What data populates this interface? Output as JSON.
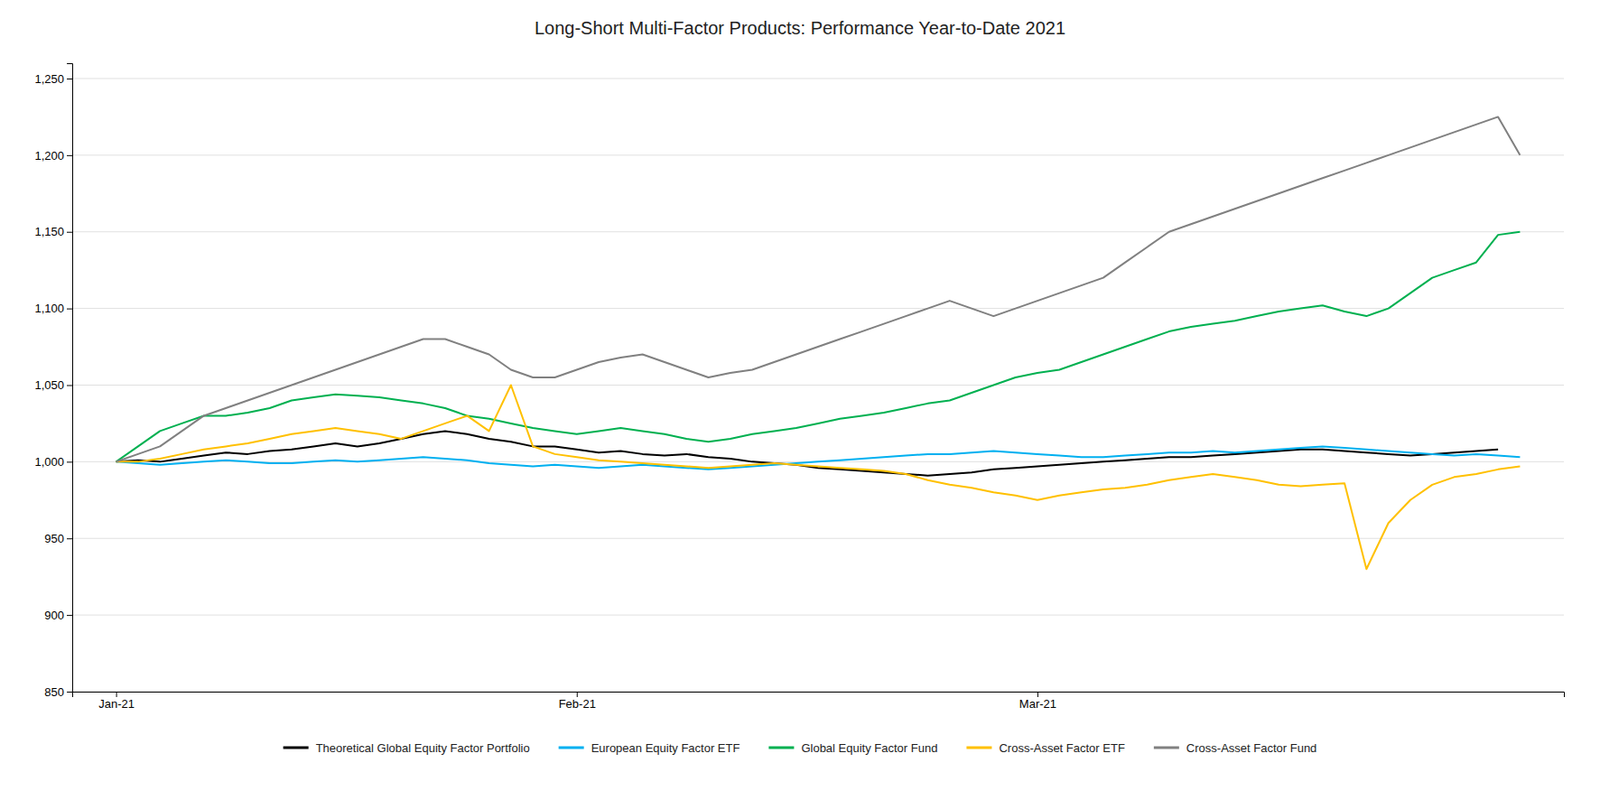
{
  "chart_data": {
    "type": "line",
    "title": "Long-Short Multi-Factor Products: Performance Year-to-Date 2021",
    "categories": [
      "Jan-21",
      null,
      null,
      null,
      null,
      null,
      null,
      null,
      null,
      null,
      null,
      null,
      null,
      null,
      null,
      null,
      null,
      null,
      null,
      null,
      null,
      "Feb-21",
      null,
      null,
      null,
      null,
      null,
      null,
      null,
      null,
      null,
      null,
      null,
      null,
      null,
      null,
      null,
      null,
      null,
      null,
      null,
      null,
      "Mar-21",
      null,
      null,
      null,
      null,
      null,
      null,
      null,
      null,
      null,
      null,
      null,
      null,
      null,
      null,
      null,
      null,
      null,
      null,
      null,
      null,
      null,
      null
    ],
    "ylim": [
      850,
      1260
    ],
    "yticks": [
      850,
      900,
      950,
      {
        "value": 1000,
        "label": "1,000"
      },
      {
        "value": 1050,
        "label": "1,050"
      },
      {
        "value": 1100,
        "label": "1,100"
      },
      {
        "value": 1150,
        "label": "1,150"
      },
      {
        "value": 1200,
        "label": "1,200"
      },
      {
        "value": 1250,
        "label": "1,250"
      }
    ],
    "grid": true,
    "legend": "bottom",
    "series": [
      {
        "name": "Theoretical Global Equity Factor Portfolio",
        "color": "#000000",
        "values": [
          1000,
          1001,
          1000,
          1002,
          1004,
          1006,
          1005,
          1007,
          1008,
          1010,
          1012,
          1010,
          1012,
          1015,
          1018,
          1020,
          1018,
          1015,
          1013,
          1010,
          1010,
          1008,
          1006,
          1007,
          1005,
          1004,
          1005,
          1003,
          1002,
          1000,
          999,
          998,
          996,
          995,
          994,
          993,
          992,
          991,
          992,
          993,
          995,
          996,
          997,
          998,
          999,
          1000,
          1001,
          1002,
          1003,
          1003,
          1004,
          1005,
          1006,
          1007,
          1008,
          1008,
          1007,
          1006,
          1005,
          1004,
          1005,
          1006,
          1007,
          1008,
          null
        ]
      },
      {
        "name": "European Equity Factor ETF",
        "color": "#00B0F0",
        "values": [
          1000,
          999,
          998,
          999,
          1000,
          1001,
          1000,
          999,
          999,
          1000,
          1001,
          1000,
          1001,
          1002,
          1003,
          1002,
          1001,
          999,
          998,
          997,
          998,
          997,
          996,
          997,
          998,
          997,
          996,
          995,
          996,
          997,
          998,
          999,
          1000,
          1001,
          1002,
          1003,
          1004,
          1005,
          1005,
          1006,
          1007,
          1006,
          1005,
          1004,
          1003,
          1003,
          1004,
          1005,
          1006,
          1006,
          1007,
          1006,
          1007,
          1008,
          1009,
          1010,
          1009,
          1008,
          1007,
          1006,
          1005,
          1004,
          1005,
          1004,
          1003
        ]
      },
      {
        "name": "Global Equity Factor Fund",
        "color": "#00B050",
        "values": [
          1000,
          1010,
          1020,
          1025,
          1030,
          1030,
          1032,
          1035,
          1040,
          1042,
          1044,
          1043,
          1042,
          1040,
          1038,
          1035,
          1030,
          1028,
          1025,
          1022,
          1020,
          1018,
          1020,
          1022,
          1020,
          1018,
          1015,
          1013,
          1015,
          1018,
          1020,
          1022,
          1025,
          1028,
          1030,
          1032,
          1035,
          1038,
          1040,
          1045,
          1050,
          1055,
          1058,
          1060,
          1065,
          1070,
          1075,
          1080,
          1085,
          1088,
          1090,
          1092,
          1095,
          1098,
          1100,
          1102,
          1098,
          1095,
          1100,
          1110,
          1120,
          1125,
          1130,
          1148,
          1150
        ]
      },
      {
        "name": "Cross-Asset Factor ETF",
        "color": "#FFC000",
        "values": [
          1000,
          1000,
          1002,
          1005,
          1008,
          1010,
          1012,
          1015,
          1018,
          1020,
          1022,
          1020,
          1018,
          1015,
          1020,
          1025,
          1030,
          1020,
          1050,
          1010,
          1005,
          1003,
          1001,
          1000,
          999,
          998,
          997,
          996,
          997,
          998,
          999,
          998,
          997,
          996,
          995,
          994,
          992,
          988,
          985,
          983,
          980,
          978,
          975,
          978,
          980,
          982,
          983,
          985,
          988,
          990,
          992,
          990,
          988,
          985,
          984,
          985,
          986,
          930,
          960,
          975,
          985,
          990,
          992,
          995,
          997
        ]
      },
      {
        "name": "Cross-Asset Factor Fund",
        "color": "#808080",
        "values": [
          1000,
          1005,
          1010,
          1020,
          1030,
          1035,
          1040,
          1045,
          1050,
          1055,
          1060,
          1065,
          1070,
          1075,
          1080,
          1080,
          1075,
          1070,
          1060,
          1055,
          1055,
          1060,
          1065,
          1068,
          1070,
          1065,
          1060,
          1055,
          1058,
          1060,
          1065,
          1070,
          1075,
          1080,
          1085,
          1090,
          1095,
          1100,
          1105,
          1100,
          1095,
          1100,
          1105,
          1110,
          1115,
          1120,
          1130,
          1140,
          1150,
          1155,
          1160,
          1165,
          1170,
          1175,
          1180,
          1185,
          1190,
          1195,
          1200,
          1205,
          1210,
          1215,
          1220,
          1225,
          1200
        ]
      }
    ]
  }
}
